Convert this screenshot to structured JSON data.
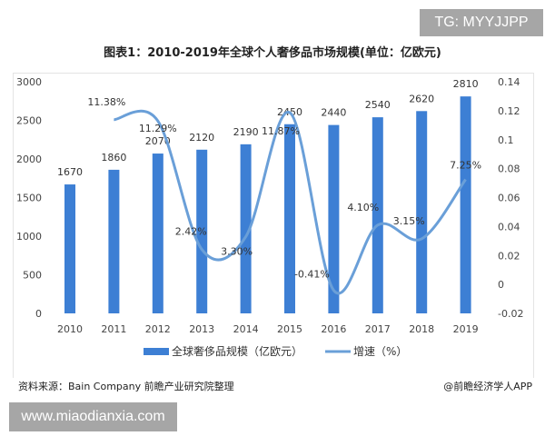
{
  "watermark_top": "TG: MYYJJPP",
  "watermark_bottom": "www.miaodianxia.com",
  "source": "资料来源：Bain Company 前瞻产业研究院整理",
  "credit": "@前瞻经济学人APP",
  "chart_data": {
    "type": "bar+line",
    "title": "图表1：2010-2019年全球个人奢侈品市场规模(单位：亿欧元)",
    "categories": [
      "2010",
      "2011",
      "2012",
      "2013",
      "2014",
      "2015",
      "2016",
      "2017",
      "2018",
      "2019"
    ],
    "series": [
      {
        "name": "全球奢侈品规模（亿欧元）",
        "type": "bar",
        "axis": "left",
        "color": "#3d7fd4",
        "values": [
          1670,
          1860,
          2070,
          2120,
          2190,
          2450,
          2440,
          2540,
          2620,
          2810
        ],
        "labels": [
          "1670",
          "1860",
          "2070",
          "2120",
          "2190",
          "2450",
          "2440",
          "2540",
          "2620",
          "2810"
        ]
      },
      {
        "name": "增速（%）",
        "type": "line",
        "axis": "right",
        "color": "#6a9fd8",
        "values": [
          null,
          0.1138,
          0.1129,
          0.0242,
          0.033,
          0.1187,
          -0.0041,
          0.041,
          0.0315,
          0.0725
        ],
        "labels": [
          "",
          "11.38%",
          "11.29%",
          "2.42%",
          "3.30%",
          "11.87%",
          "-0.41%",
          "4.10%",
          "3.15%",
          "7.25%"
        ]
      }
    ],
    "y_left": {
      "range": [
        0,
        3000
      ],
      "ticks": [
        "0",
        "500",
        "1000",
        "1500",
        "2000",
        "2500",
        "3000"
      ]
    },
    "y_right": {
      "range": [
        -0.02,
        0.14
      ],
      "ticks": [
        "-0.02",
        "0",
        "0.02",
        "0.04",
        "0.06",
        "0.08",
        "0.1",
        "0.12",
        "0.14"
      ]
    },
    "grid": false,
    "legend": "bottom"
  }
}
